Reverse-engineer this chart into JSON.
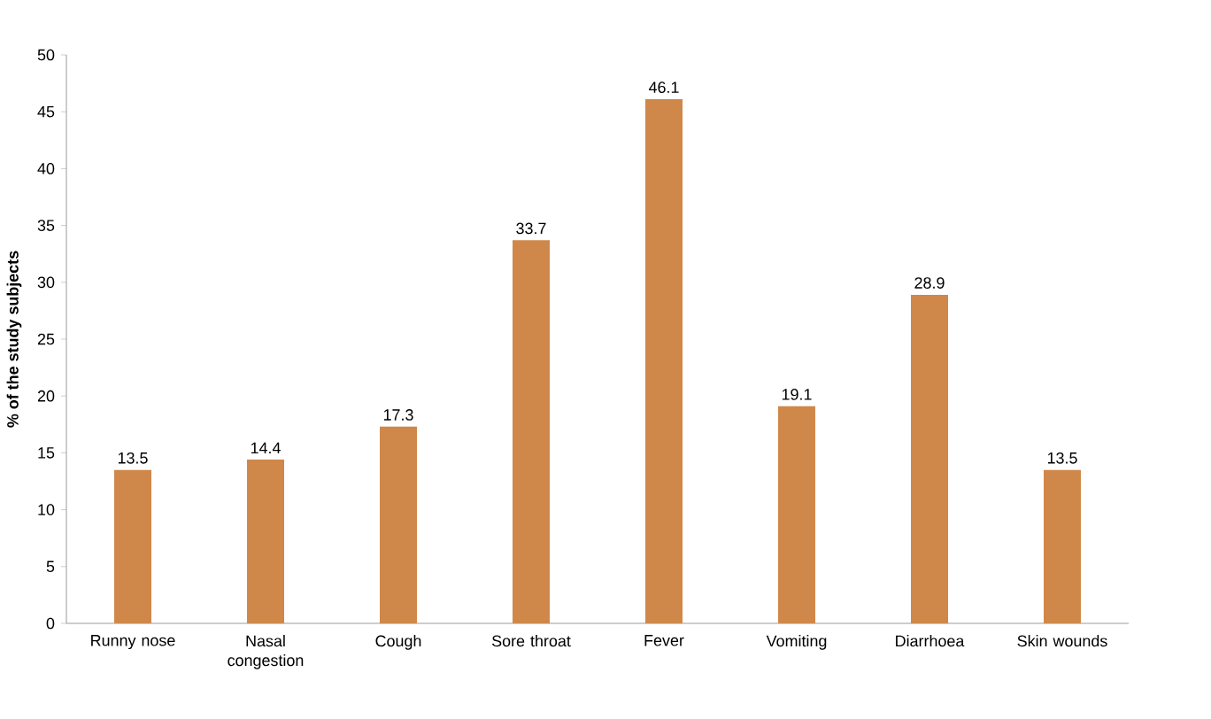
{
  "chart_data": {
    "type": "bar",
    "ylabel": "% of the study subjects",
    "categories": [
      "Runny nose",
      "Nasal congestion",
      "Cough",
      "Sore throat",
      "Fever",
      "Vomiting",
      "Diarrhoea",
      "Skin wounds"
    ],
    "values": [
      13.5,
      14.4,
      17.3,
      33.7,
      46.1,
      19.1,
      28.9,
      13.5
    ],
    "color": "#d0884a",
    "ylim": [
      0,
      50
    ],
    "yticks": [
      0,
      5,
      10,
      15,
      20,
      25,
      30,
      35,
      40,
      45,
      50
    ],
    "data_labels": true
  }
}
